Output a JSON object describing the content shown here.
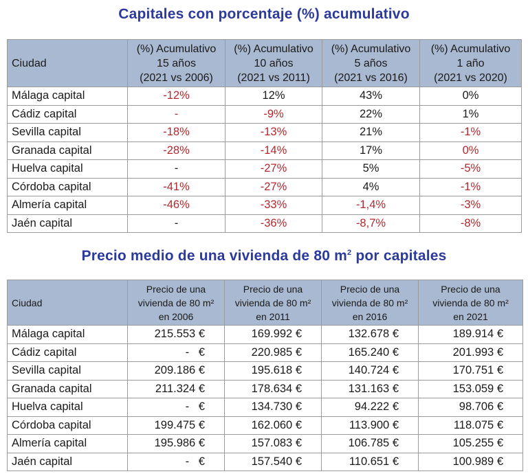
{
  "title1": "Capitales con porcentaje (%) acumulativo",
  "title2": {
    "main": "Precio medio de una vivienda de 80 m",
    "sup": "2",
    "end": " por capitales"
  },
  "table1": {
    "headers": [
      {
        "lines": [
          "Ciudad"
        ]
      },
      {
        "lines": [
          "(%) Acumulativo",
          "15 años",
          "(2021 vs 2006)"
        ]
      },
      {
        "lines": [
          "(%) Acumulativo",
          "10 años",
          "(2021 vs 2011)"
        ]
      },
      {
        "lines": [
          "(%) Acumulativo",
          "5 años",
          "(2021 vs 2016)"
        ]
      },
      {
        "lines": [
          "(%) Acumulativo",
          "1 año",
          "(2021 vs 2020)"
        ]
      }
    ],
    "rows": [
      {
        "city": "Málaga capital",
        "cells": [
          {
            "v": "-12%",
            "neg": true
          },
          {
            "v": "12%",
            "neg": false
          },
          {
            "v": "43%",
            "neg": false
          },
          {
            "v": "0%",
            "neg": false
          }
        ]
      },
      {
        "city": "Cádiz capital",
        "cells": [
          {
            "v": "-",
            "neg": true
          },
          {
            "v": "-9%",
            "neg": true
          },
          {
            "v": "22%",
            "neg": false
          },
          {
            "v": "1%",
            "neg": false
          }
        ]
      },
      {
        "city": "Sevilla capital",
        "cells": [
          {
            "v": "-18%",
            "neg": true
          },
          {
            "v": "-13%",
            "neg": true
          },
          {
            "v": "21%",
            "neg": false
          },
          {
            "v": "-1%",
            "neg": true
          }
        ]
      },
      {
        "city": "Granada capital",
        "cells": [
          {
            "v": "-28%",
            "neg": true
          },
          {
            "v": "-14%",
            "neg": true
          },
          {
            "v": "17%",
            "neg": false
          },
          {
            "v": "0%",
            "neg": true
          }
        ]
      },
      {
        "city": "Huelva capital",
        "cells": [
          {
            "v": "-",
            "neg": false
          },
          {
            "v": "-27%",
            "neg": true
          },
          {
            "v": "5%",
            "neg": false
          },
          {
            "v": "-5%",
            "neg": true
          }
        ]
      },
      {
        "city": "Córdoba capital",
        "cells": [
          {
            "v": "-41%",
            "neg": true
          },
          {
            "v": "-27%",
            "neg": true
          },
          {
            "v": "4%",
            "neg": false
          },
          {
            "v": "-1%",
            "neg": true
          }
        ]
      },
      {
        "city": "Almería capital",
        "cells": [
          {
            "v": "-46%",
            "neg": true
          },
          {
            "v": "-33%",
            "neg": true
          },
          {
            "v": "-1,4%",
            "neg": true
          },
          {
            "v": "-3%",
            "neg": true
          }
        ]
      },
      {
        "city": "Jaén capital",
        "cells": [
          {
            "v": "-",
            "neg": false
          },
          {
            "v": "-36%",
            "neg": true
          },
          {
            "v": "-8,7%",
            "neg": true
          },
          {
            "v": "-8%",
            "neg": true
          }
        ]
      }
    ]
  },
  "table2": {
    "headers": [
      {
        "lines": [
          "Ciudad"
        ]
      },
      {
        "lines": [
          "Precio de una",
          "vivienda de 80 m²",
          "en 2006"
        ]
      },
      {
        "lines": [
          "Precio de una",
          "vivienda de 80 m²",
          "en 2011"
        ]
      },
      {
        "lines": [
          "Precio de una",
          "vivienda de 80 m²",
          "en 2016"
        ]
      },
      {
        "lines": [
          "Precio de una",
          "vivienda de 80 m²",
          "en 2021"
        ]
      }
    ],
    "rows": [
      {
        "city": "Málaga capital",
        "cells": [
          "215.553 €",
          "169.992 €",
          "132.678 €",
          "189.914 €"
        ]
      },
      {
        "city": "Cádiz capital",
        "cells": [
          "-   €",
          "220.985 €",
          "165.240 €",
          "201.993 €"
        ]
      },
      {
        "city": "Sevilla capital",
        "cells": [
          "209.186 €",
          "195.618 €",
          "140.724 €",
          "170.751 €"
        ]
      },
      {
        "city": "Granada capital",
        "cells": [
          "211.324 €",
          "178.634 €",
          "131.163 €",
          "153.059 €"
        ]
      },
      {
        "city": "Huelva capital",
        "cells": [
          "-   €",
          "134.730 €",
          "94.222 €",
          "98.706 €"
        ]
      },
      {
        "city": "Córdoba capital",
        "cells": [
          "199.475 €",
          "162.060 €",
          "113.900 €",
          "118.075 €"
        ]
      },
      {
        "city": "Almería capital",
        "cells": [
          "195.986 €",
          "157.083 €",
          "106.785 €",
          "105.255 €"
        ]
      },
      {
        "city": "Jaén capital",
        "cells": [
          "-   €",
          "157.540 €",
          "110.651 €",
          "100.989 €"
        ]
      }
    ]
  }
}
